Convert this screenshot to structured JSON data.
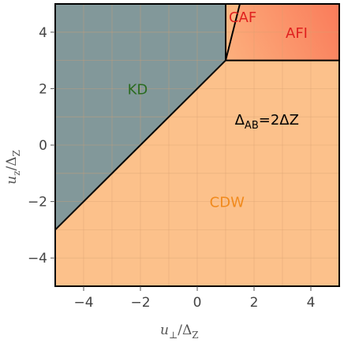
{
  "chart_data": {
    "type": "area",
    "title": "",
    "xlabel": {
      "base": "u",
      "sub": "⊥",
      "sep": "/Δ",
      "den": "Z"
    },
    "ylabel": {
      "base": "u",
      "sub": "z",
      "sep": "/Δ",
      "den": "Z"
    },
    "xlim": [
      -5,
      5
    ],
    "ylim": [
      -5,
      5
    ],
    "xticks": [
      -4,
      -2,
      0,
      2,
      4
    ],
    "yticks": [
      -4,
      -2,
      0,
      2,
      4
    ],
    "xtick_labels": [
      "−4",
      "−2",
      "0",
      "2",
      "4"
    ],
    "ytick_labels": [
      "−4",
      "−2",
      "0",
      "2",
      "4"
    ],
    "grid": true,
    "colors": {
      "cdw": "#fcc18b",
      "kd": "#82989a",
      "afi_left": "#fcb07d",
      "afi_right": "#fa7b5a",
      "grid": "#d8a071",
      "boundary": "#000000",
      "frame": "#000000"
    },
    "regions": [
      {
        "name": "KD",
        "label_x": -2.1,
        "label_y": 2.0,
        "color": "#2a6b1f"
      },
      {
        "name": "CAF",
        "label_x": 1.6,
        "label_y": 4.55,
        "color": "#e0201f"
      },
      {
        "name": "AFI",
        "label_x": 3.5,
        "label_y": 4.0,
        "color": "#e0201f"
      },
      {
        "name": "CDW",
        "label_x": 1.05,
        "label_y": -2.0,
        "color": "#f18a1c"
      }
    ],
    "boundaries": [
      {
        "name": "kd-cdw",
        "points": [
          [
            -5,
            -3
          ],
          [
            1,
            3
          ]
        ]
      },
      {
        "name": "kd-caf",
        "points": [
          [
            1,
            3
          ],
          [
            1,
            5
          ]
        ]
      },
      {
        "name": "caf-afi",
        "points": [
          [
            1,
            3
          ],
          [
            1.5,
            5
          ]
        ]
      },
      {
        "name": "afi-cdw",
        "points": [
          [
            1,
            3
          ],
          [
            5,
            3
          ]
        ]
      }
    ],
    "annotation": {
      "base": "Δ",
      "sub": "AB",
      "rest": "=2ΔZ",
      "x": 3.1,
      "y": 0.9
    }
  }
}
